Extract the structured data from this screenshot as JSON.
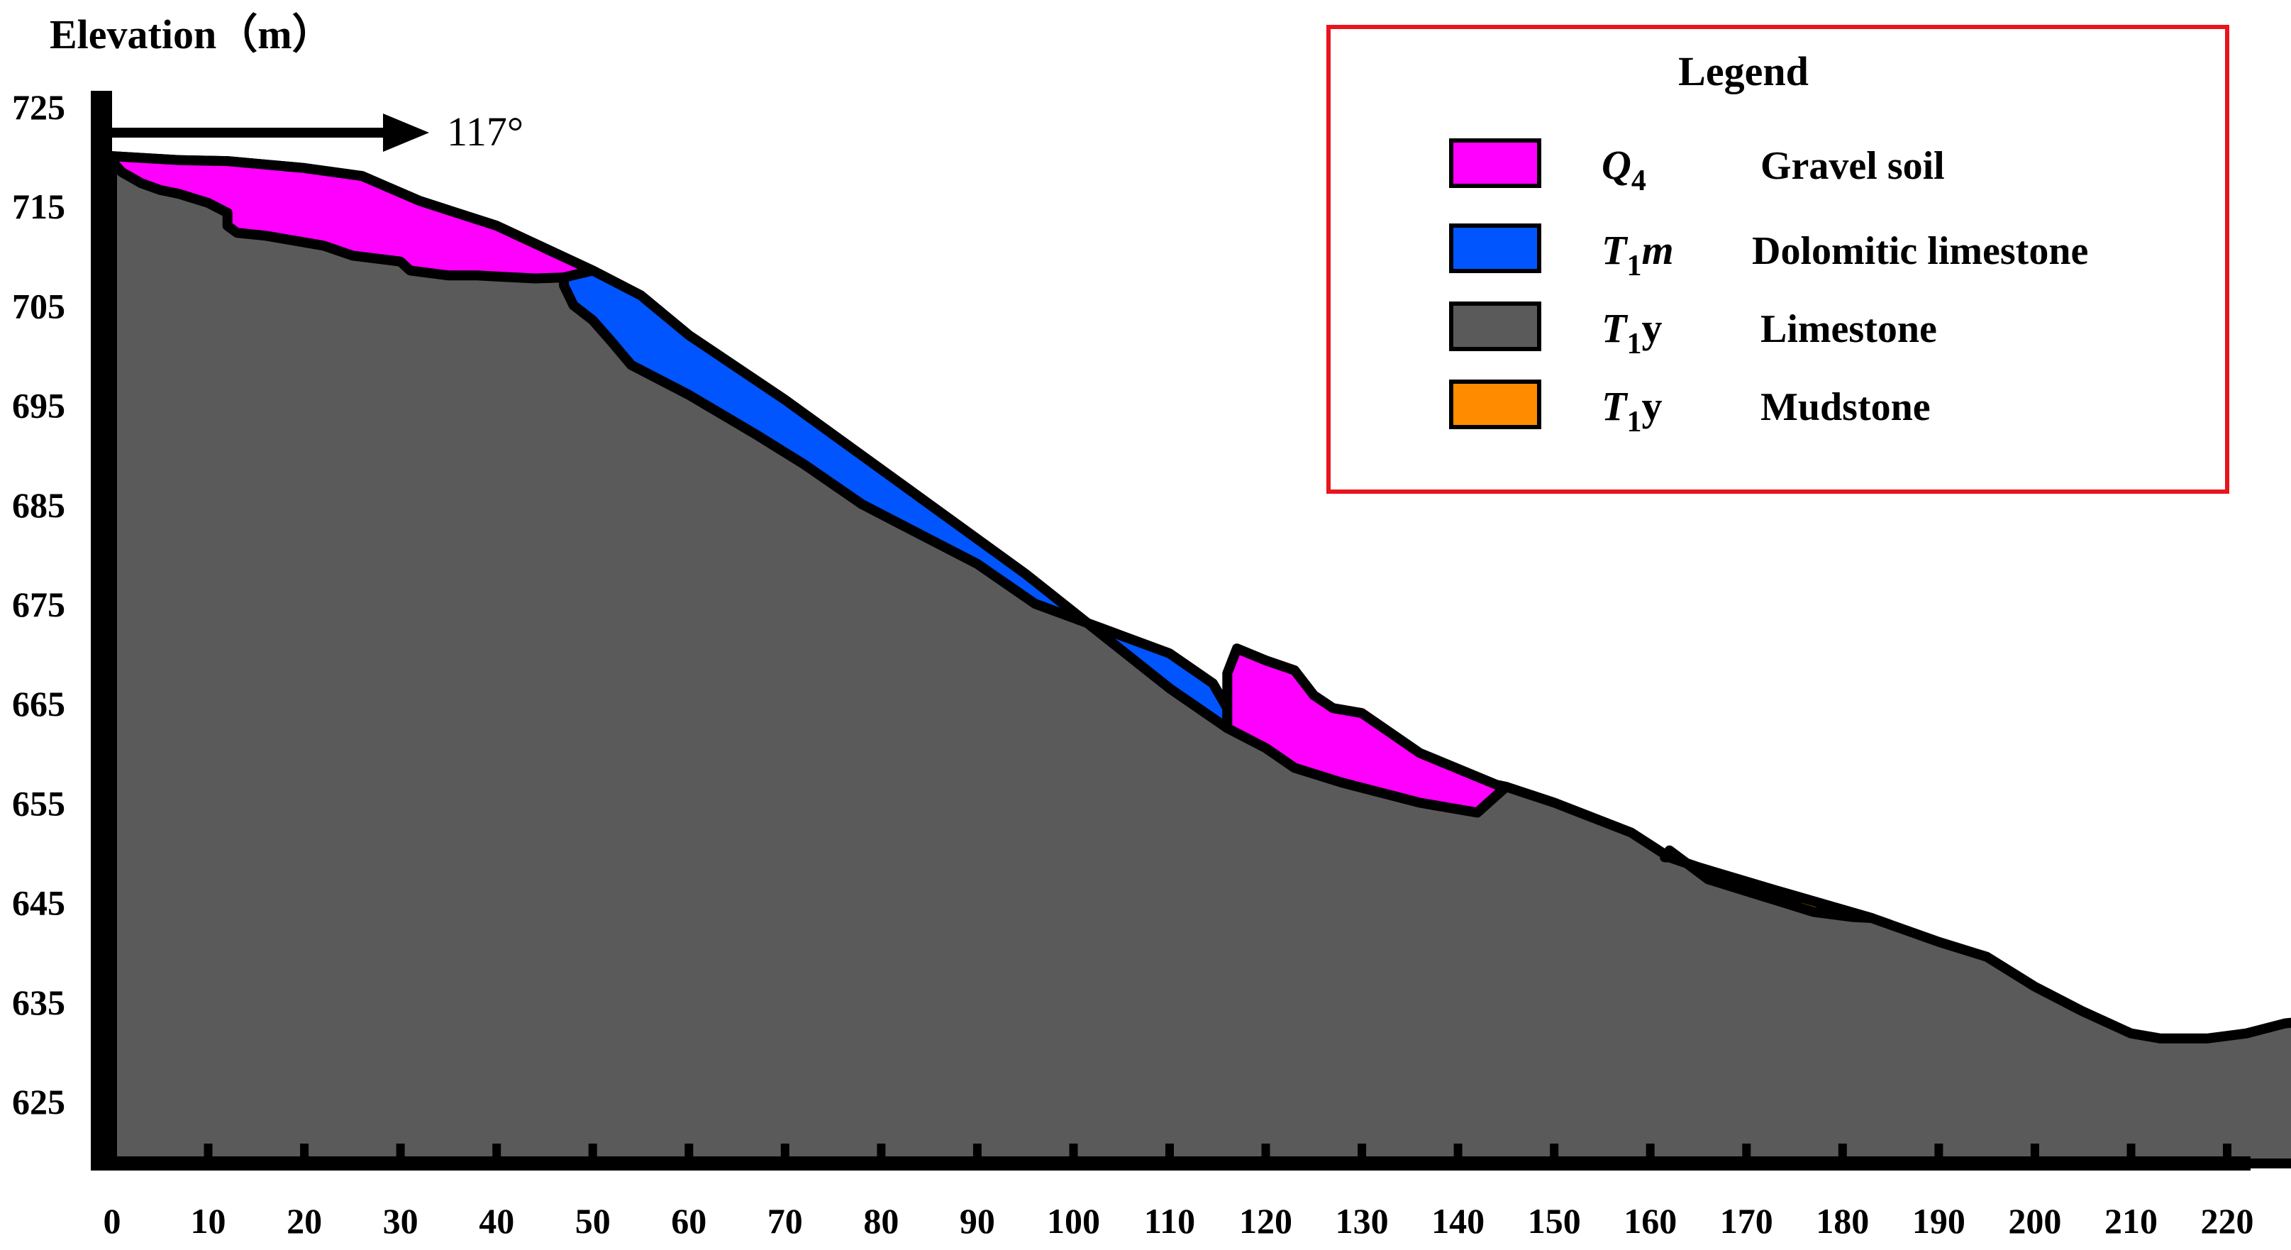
{
  "title": "Elevation（m）",
  "direction": {
    "label": "117°"
  },
  "y_axis": {
    "min": 620,
    "max": 729,
    "ticks": [
      725,
      715,
      705,
      695,
      685,
      675,
      665,
      655,
      645,
      635,
      625
    ]
  },
  "x_axis": {
    "min": 0,
    "max": 220,
    "ticks": [
      0,
      10,
      20,
      30,
      40,
      50,
      60,
      70,
      80,
      90,
      100,
      110,
      120,
      130,
      140,
      150,
      160,
      170,
      180,
      190,
      200,
      210,
      220
    ]
  },
  "colors": {
    "gravel_soil": "#ff00ff",
    "dolomitic_limestone": "#0055ff",
    "limestone": "#5a5a5a",
    "mudstone": "#ff8c00",
    "legend_border": "#e8141e"
  },
  "legend": {
    "title": "Legend",
    "items": [
      {
        "symbol": "Q",
        "sub": "4",
        "suffix": "",
        "name": "Gravel soil",
        "color": "#ff00ff"
      },
      {
        "symbol": "T",
        "sub": "1",
        "suffix": "m",
        "name": "Dolomitic limestone",
        "color": "#0055ff"
      },
      {
        "symbol": "T",
        "sub": "1",
        "suffix": "y",
        "name": "Limestone",
        "color": "#5a5a5a"
      },
      {
        "symbol": "T",
        "sub": "1",
        "suffix": "y",
        "name": "Mudstone",
        "color": "#ff8c00"
      }
    ]
  },
  "layers": {
    "limestone": {
      "surface": [
        [
          0,
          720
        ],
        [
          7,
          719.6
        ],
        [
          12,
          719.5
        ],
        [
          20,
          718.8
        ],
        [
          26,
          718
        ],
        [
          32,
          715.5
        ],
        [
          40,
          713
        ],
        [
          50,
          708.5
        ],
        [
          55,
          706
        ],
        [
          60,
          702
        ],
        [
          70,
          695.5
        ],
        [
          80,
          688.5
        ],
        [
          95,
          678
        ],
        [
          110,
          666.5
        ],
        [
          116,
          662.5
        ],
        [
          118,
          661.5
        ],
        [
          120,
          660.5
        ],
        [
          123,
          658.5
        ],
        [
          128,
          657
        ],
        [
          136,
          655
        ],
        [
          142,
          654
        ],
        [
          145,
          656.6
        ],
        [
          150,
          655
        ],
        [
          158,
          652
        ],
        [
          162,
          649.5
        ],
        [
          165,
          648.5
        ],
        [
          173,
          646.2
        ],
        [
          183,
          643.4
        ],
        [
          190,
          641
        ],
        [
          195,
          639.5
        ],
        [
          200,
          636.5
        ],
        [
          205,
          634
        ],
        [
          210,
          631.8
        ],
        [
          213,
          631.3
        ],
        [
          218,
          631.3
        ],
        [
          222,
          631.8
        ],
        [
          226,
          632.8
        ],
        [
          233,
          633.5
        ]
      ]
    },
    "gravel_soil_upper": {
      "outline": [
        [
          0,
          720
        ],
        [
          7,
          719.6
        ],
        [
          12,
          719.5
        ],
        [
          20,
          718.8
        ],
        [
          26,
          718
        ],
        [
          32,
          715.5
        ],
        [
          40,
          713
        ],
        [
          50,
          708.5
        ],
        [
          47,
          707.8
        ],
        [
          44,
          707.7
        ],
        [
          40,
          707.9
        ],
        [
          38,
          708
        ],
        [
          35,
          708
        ],
        [
          31,
          708.5
        ],
        [
          30,
          709.4
        ],
        [
          25,
          710
        ],
        [
          22,
          711
        ],
        [
          16,
          712
        ],
        [
          13,
          712.3
        ],
        [
          12,
          713
        ],
        [
          12,
          714.3
        ],
        [
          10,
          715.3
        ],
        [
          7,
          716.2
        ],
        [
          5,
          716.6
        ],
        [
          3,
          717.3
        ],
        [
          1,
          718.4
        ],
        [
          0,
          719.5
        ]
      ]
    },
    "dolomitic_limestone": {
      "outline": [
        [
          50,
          708.5
        ],
        [
          55,
          706
        ],
        [
          60,
          702
        ],
        [
          70,
          695.5
        ],
        [
          80,
          688.5
        ],
        [
          95,
          678
        ],
        [
          110,
          666.5
        ],
        [
          116,
          662.5
        ],
        [
          116,
          664.5
        ],
        [
          114.5,
          667
        ],
        [
          110,
          670
        ],
        [
          103,
          672.5
        ],
        [
          96,
          675
        ],
        [
          90,
          679
        ],
        [
          83,
          682.5
        ],
        [
          78,
          685
        ],
        [
          72,
          689
        ],
        [
          67,
          692
        ],
        [
          60,
          696
        ],
        [
          54,
          699
        ],
        [
          52,
          701.3
        ],
        [
          50,
          703.5
        ],
        [
          48,
          705
        ],
        [
          47,
          707
        ],
        [
          47,
          707.8
        ]
      ]
    },
    "gravel_soil_lower": {
      "outline": [
        [
          116,
          662.5
        ],
        [
          118,
          661.5
        ],
        [
          120,
          660.5
        ],
        [
          123,
          658.5
        ],
        [
          128,
          657
        ],
        [
          136,
          655
        ],
        [
          142,
          654
        ],
        [
          145,
          656.6
        ],
        [
          144,
          656.8
        ],
        [
          136,
          660
        ],
        [
          130,
          664
        ],
        [
          127,
          664.5
        ],
        [
          125,
          665.8
        ],
        [
          123,
          668.3
        ],
        [
          120,
          669.3
        ],
        [
          117,
          670.5
        ],
        [
          116,
          668
        ],
        [
          116,
          664.5
        ]
      ]
    },
    "mudstone": {
      "outline": [
        [
          162,
          649.5
        ],
        [
          165,
          648.5
        ],
        [
          173,
          646.2
        ],
        [
          183,
          643.4
        ],
        [
          181,
          643.5
        ],
        [
          177,
          644
        ],
        [
          172,
          645.5
        ],
        [
          166,
          647.3
        ],
        [
          162,
          650.2
        ],
        [
          161.5,
          649.5
        ]
      ]
    }
  }
}
